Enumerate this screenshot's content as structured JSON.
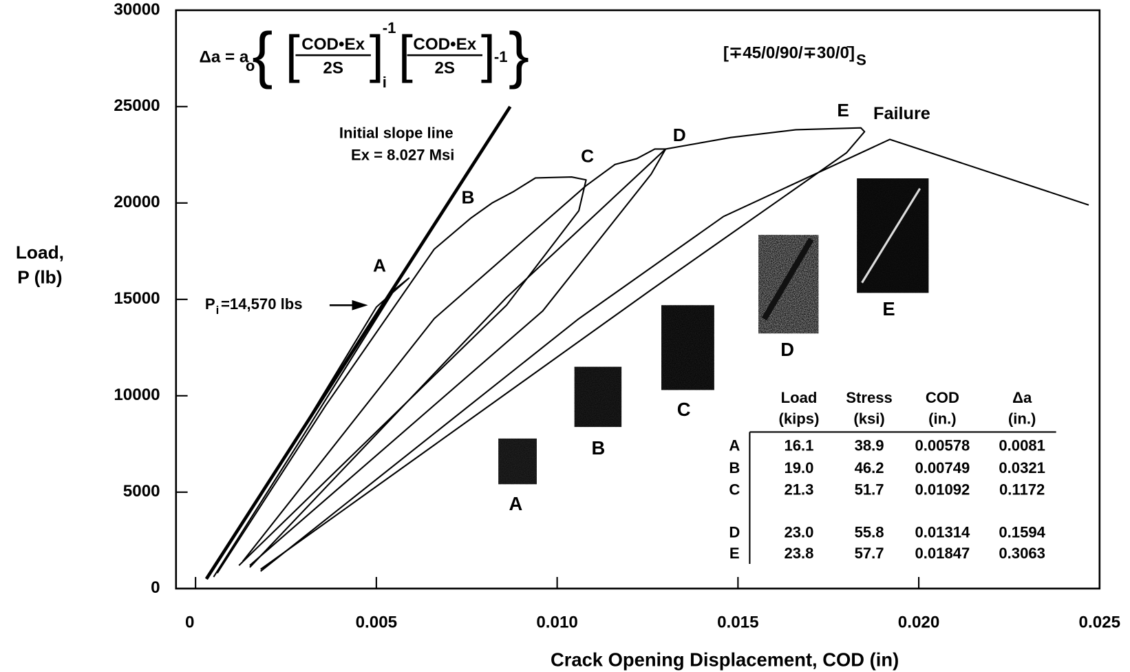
{
  "chart_data": {
    "type": "line",
    "xlabel": "Crack Opening Displacement, COD (in)",
    "ylabel": [
      "Load,",
      "P (lb)"
    ],
    "xlim": [
      -0.00054,
      0.025
    ],
    "ylim": [
      0,
      30000
    ],
    "xticks": [
      0,
      0.005,
      {
        "value": 0.01,
        "label": "0.010"
      },
      0.015,
      {
        "value": 0.02,
        "label": "0.020"
      },
      0.025
    ],
    "yticks": [
      0,
      5000,
      10000,
      15000,
      20000,
      25000,
      30000
    ],
    "series": [
      {
        "color": "#000000",
        "linewidth": 4.5,
        "x": [
          0.0003,
          0.0087
        ],
        "values": [
          500,
          25000
        ]
      },
      {
        "color": "#000000",
        "linewidth": 2,
        "x": [
          0.0003,
          0.0026,
          0.005,
          0.0059,
          0.0055,
          0.003,
          0.0005
        ],
        "values": [
          500,
          7200,
          14600,
          16100,
          15500,
          8000,
          600
        ]
      },
      {
        "color": "#000000",
        "linewidth": 2,
        "x": [
          0.0006,
          0.0036,
          0.0066,
          0.0076,
          0.0082,
          0.0088,
          0.0094,
          0.0104,
          0.0108,
          0.0106,
          0.0086,
          0.0012
        ],
        "values": [
          800,
          9500,
          17600,
          19200,
          20000,
          20600,
          21300,
          21350,
          21200,
          19600,
          14700,
          1200
        ]
      },
      {
        "color": "#000000",
        "linewidth": 2,
        "x": [
          0.0013,
          0.0066,
          0.0108,
          0.0116,
          0.0122,
          0.0127,
          0.013,
          0.0126,
          0.0096,
          0.0015
        ],
        "values": [
          1400,
          14000,
          20900,
          22000,
          22300,
          22800,
          22800,
          21500,
          14400,
          1200
        ]
      },
      {
        "color": "#000000",
        "linewidth": 2,
        "x": [
          0.0015,
          0.0086,
          0.013,
          0.0136,
          0.0148,
          0.0166,
          0.0184,
          0.0185,
          0.018,
          0.0126,
          0.0018
        ],
        "values": [
          1100,
          15100,
          22800,
          23000,
          23400,
          23800,
          23900,
          23700,
          22600,
          15500,
          1000
        ]
      },
      {
        "color": "#000000",
        "linewidth": 2,
        "x": [
          0.0018,
          0.0106,
          0.0146,
          0.0192,
          0.0247
        ],
        "values": [
          900,
          14000,
          19300,
          23300,
          19900
        ]
      }
    ],
    "point_labels": [
      "A",
      "B",
      "C",
      "D",
      "E"
    ],
    "annotations": [
      "Failure",
      "Initial slope line",
      "Ex = 8.027 Msi"
    ],
    "pi_label": {
      "main": "P",
      "sub": "i",
      "rest": "=14,570 lbs"
    },
    "formula": {
      "lhs": "Δa = a",
      "lhs_sub": "o",
      "num": "COD•Ex",
      "den": "2S",
      "sup": "-1",
      "sub": "i",
      "tail": "-1"
    },
    "layup": {
      "main": "[∓45/0/90/∓30/0̄]",
      "sub": "S"
    }
  },
  "specimens": [
    "A",
    "B",
    "C",
    "D",
    "E"
  ],
  "table": {
    "columns": [
      [
        "Load",
        "(kips)"
      ],
      [
        "Stress",
        "(ksi)"
      ],
      [
        "COD",
        "(in.)"
      ],
      [
        "Δa",
        "(in.)"
      ]
    ],
    "rows": [
      {
        "label": "A",
        "cells": [
          "16.1",
          "38.9",
          "0.00578",
          "0.0081"
        ]
      },
      {
        "label": "B",
        "cells": [
          "19.0",
          "46.2",
          "0.00749",
          "0.0321"
        ]
      },
      {
        "label": "C",
        "cells": [
          "21.3",
          "51.7",
          "0.01092",
          "0.1172"
        ]
      },
      {
        "label": "D",
        "cells": [
          "23.0",
          "55.8",
          "0.01314",
          "0.1594"
        ]
      },
      {
        "label": "E",
        "cells": [
          "23.8",
          "57.7",
          "0.01847",
          "0.3063"
        ]
      }
    ]
  }
}
